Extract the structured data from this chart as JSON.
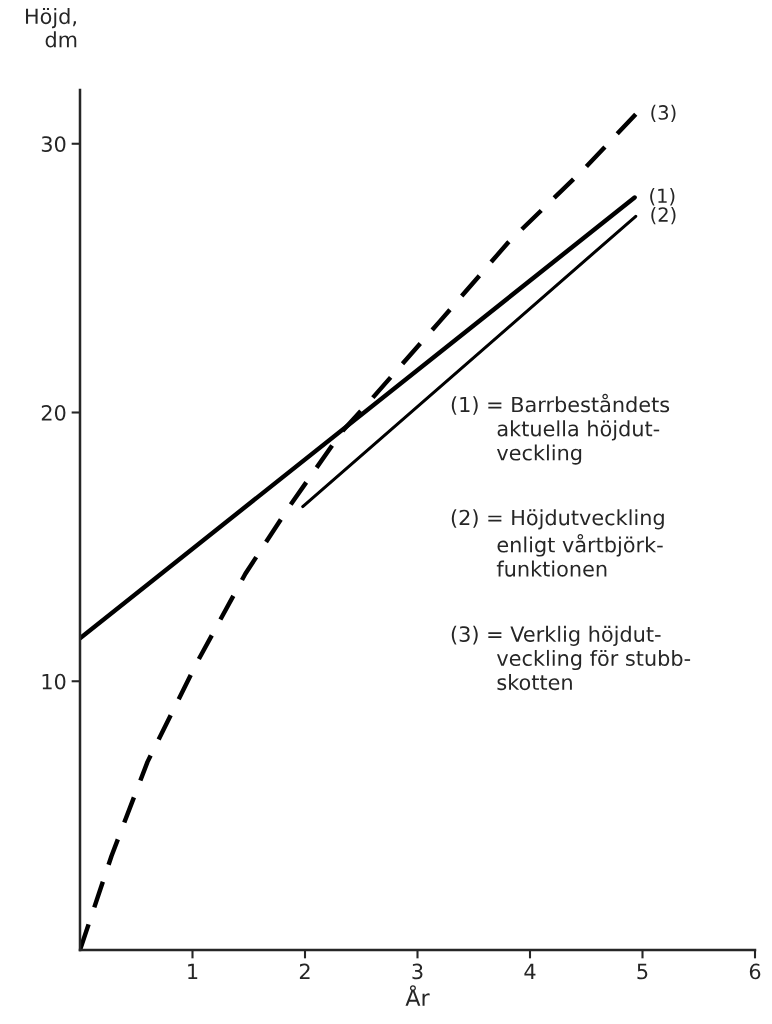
{
  "chart_data": {
    "type": "line",
    "xlabel": "År",
    "ylabel": "Höjd,\ndm",
    "xlim": [
      0,
      6
    ],
    "xticks": [
      1,
      2,
      3,
      4,
      5,
      6
    ],
    "ylim": [
      0,
      32
    ],
    "yticks": [
      10,
      20,
      30
    ],
    "grid": false,
    "legend": false,
    "marker": "none",
    "series": [
      {
        "name": "(1)",
        "color": "#000000",
        "line_style": "solid",
        "x": [
          0,
          4.93
        ],
        "values": [
          11.6,
          28.0
        ]
      },
      {
        "name": "(2)",
        "color": "#000000",
        "line_style": "solid",
        "x": [
          1.98,
          4.94
        ],
        "values": [
          16.5,
          27.3
        ]
      },
      {
        "name": "(3)",
        "color": "#000000",
        "line_style": "dashed",
        "x": [
          0,
          0.28,
          0.6,
          1.04,
          1.47,
          1.86,
          2.33,
          2.55,
          3.2,
          3.8,
          4.49,
          4.94
        ],
        "values": [
          0,
          3.5,
          7.0,
          10.7,
          14.0,
          16.5,
          19.3,
          20.3,
          23.4,
          26.3,
          29.1,
          31.1
        ]
      }
    ],
    "annotations": [
      "(1) = Barrbeståndets\n       aktuella höjdut-\n       veckling",
      "(2) = Höjdutveckling\n       enligt vårtbjörk-\n       funktionen",
      "(3) = Verklig höjdut-\n       veckling för stubb-\n       skotten"
    ]
  }
}
